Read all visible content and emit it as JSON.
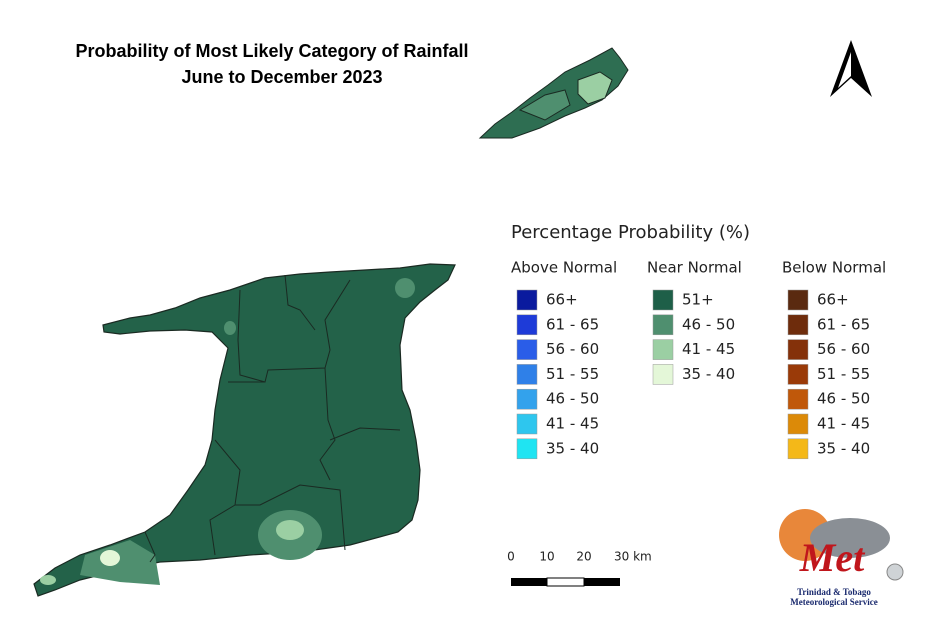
{
  "title": [
    "Probability of Most Likely Category of Rainfall",
    "June to December 2023"
  ],
  "legend": {
    "title": "Percentage Probability (%)",
    "columns": [
      {
        "heading": "Above Normal",
        "items": [
          {
            "label": "66+",
            "color": "#0a1a9e"
          },
          {
            "label": "61 - 65",
            "color": "#1e3bd8"
          },
          {
            "label": "56 - 60",
            "color": "#2a5de8"
          },
          {
            "label": "51 - 55",
            "color": "#2f80e8"
          },
          {
            "label": "46 - 50",
            "color": "#33a2ec"
          },
          {
            "label": "41 - 45",
            "color": "#2ec6ee"
          },
          {
            "label": "35 - 40",
            "color": "#1fe4f2"
          }
        ]
      },
      {
        "heading": "Near Normal",
        "items": [
          {
            "label": "51+",
            "color": "#1e5f48"
          },
          {
            "label": "46 - 50",
            "color": "#4f8f6f"
          },
          {
            "label": "41 - 45",
            "color": "#9bcfa3"
          },
          {
            "label": "35 - 40",
            "color": "#e4f7d8"
          }
        ]
      },
      {
        "heading": "Below Normal",
        "items": [
          {
            "label": "66+",
            "color": "#5a2a10"
          },
          {
            "label": "61 - 65",
            "color": "#6e2c0c"
          },
          {
            "label": "56 - 60",
            "color": "#84310a"
          },
          {
            "label": "51 - 55",
            "color": "#9a3a08"
          },
          {
            "label": "46 - 50",
            "color": "#c0580a"
          },
          {
            "label": "41 - 45",
            "color": "#dc8a08"
          },
          {
            "label": "35 - 40",
            "color": "#f4b818"
          }
        ]
      }
    ]
  },
  "scale_bar": {
    "labels": [
      "0",
      "10",
      "20",
      "30 km"
    ]
  },
  "logo": {
    "mark": "Met",
    "lines": [
      "Trinidad & Tobago",
      "Meteorological Service"
    ]
  }
}
